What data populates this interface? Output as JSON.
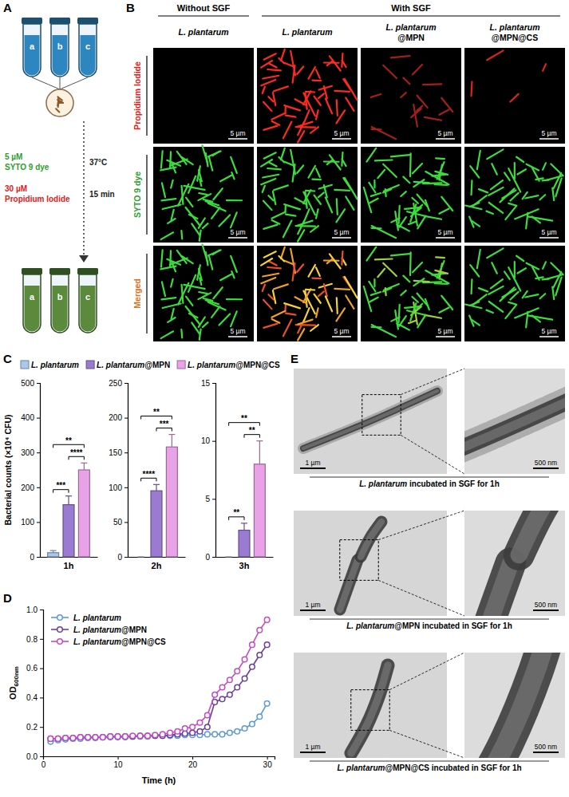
{
  "panel_labels": [
    "A",
    "B",
    "C",
    "D",
    "E"
  ],
  "panel_a": {
    "tubes": [
      "a",
      "b",
      "c"
    ],
    "stain_1": [
      "5 µM",
      "SYTO 9 dye"
    ],
    "stain_2": [
      "30 µM",
      "Propidium Iodide"
    ],
    "conditions": [
      "37°C",
      "15 min"
    ]
  },
  "panel_b": {
    "header_left": "Without SGF",
    "header_right": "With SGF",
    "columns": [
      "L. plantarum",
      "L. plantarum",
      "L. plantarum@MPN",
      "L. plantarum@MPN@CS"
    ],
    "rows": [
      "Propidium Iodide",
      "SYTO 9 dye",
      "Merged"
    ],
    "scale_bar": "5 µm"
  },
  "chart_data": [
    {
      "type": "bar",
      "categories": [
        "1h"
      ],
      "y_label": "Bacterial counts (×10⁴ CFU)",
      "ylim": [
        0,
        500
      ],
      "yticks": [
        0,
        100,
        200,
        300,
        400,
        500
      ],
      "legend": "top",
      "series": [
        {
          "name": "L. plantarum",
          "color": "#a9c8ec",
          "values": [
            12
          ],
          "errors": [
            6
          ]
        },
        {
          "name": "L. plantarum@MPN",
          "color": "#9a7bd1",
          "values": [
            150
          ],
          "errors": [
            25
          ]
        },
        {
          "name": "L. plantarum@MPN@CS",
          "color": "#e9a1e8",
          "values": [
            250
          ],
          "errors": [
            20
          ]
        }
      ],
      "annotations": [
        {
          "text": "***",
          "from": 0,
          "to": 1
        },
        {
          "text": "****",
          "from": 1,
          "to": 2
        },
        {
          "text": "**",
          "from": 0,
          "to": 2
        }
      ]
    },
    {
      "type": "bar",
      "categories": [
        "2h"
      ],
      "ylim": [
        0,
        250
      ],
      "yticks": [
        0,
        50,
        100,
        150,
        200,
        250
      ],
      "series": [
        {
          "color": "#a9c8ec",
          "values": [
            0
          ],
          "errors": [
            0
          ]
        },
        {
          "color": "#9a7bd1",
          "values": [
            95
          ],
          "errors": [
            9
          ]
        },
        {
          "color": "#e9a1e8",
          "values": [
            158
          ],
          "errors": [
            18
          ]
        }
      ],
      "annotations": [
        {
          "text": "****",
          "from": 0,
          "to": 1
        },
        {
          "text": "***",
          "from": 1,
          "to": 2
        },
        {
          "text": "**",
          "from": 0,
          "to": 2
        }
      ]
    },
    {
      "type": "bar",
      "categories": [
        "3h"
      ],
      "ylim": [
        0,
        15
      ],
      "yticks": [
        0,
        5,
        10,
        15
      ],
      "series": [
        {
          "color": "#a9c8ec",
          "values": [
            0
          ],
          "errors": [
            0
          ]
        },
        {
          "color": "#9a7bd1",
          "values": [
            2.3
          ],
          "errors": [
            0.6
          ]
        },
        {
          "color": "#e9a1e8",
          "values": [
            8
          ],
          "errors": [
            2
          ]
        }
      ],
      "annotations": [
        {
          "text": "**",
          "from": 0,
          "to": 1
        },
        {
          "text": "**",
          "from": 1,
          "to": 2
        },
        {
          "text": "**",
          "from": 0,
          "to": 2
        }
      ]
    },
    {
      "type": "line",
      "x_label": "Time (h)",
      "y_label": "OD600nm",
      "xlim": [
        0,
        31
      ],
      "xticks": [
        0,
        10,
        20,
        30
      ],
      "ylim": [
        0,
        1
      ],
      "yticks": [
        {
          "value": 0,
          "label": "0.0"
        },
        0.2,
        0.4,
        0.6,
        0.8,
        {
          "value": 1,
          "label": "1.0"
        }
      ],
      "legend": "top-left",
      "marker": "open-circle",
      "line_style": "solid",
      "x": [
        1,
        2,
        3,
        4,
        5,
        6,
        7,
        8,
        9,
        10,
        11,
        12,
        13,
        14,
        15,
        16,
        17,
        18,
        19,
        20,
        21,
        22,
        23,
        24,
        25,
        26,
        27,
        28,
        29,
        30
      ],
      "series": [
        {
          "name": "L. plantarum",
          "color": "#5b9bd5",
          "values": [
            0.1,
            0.11,
            0.115,
            0.12,
            0.12,
            0.125,
            0.125,
            0.13,
            0.13,
            0.13,
            0.13,
            0.135,
            0.135,
            0.135,
            0.14,
            0.14,
            0.14,
            0.14,
            0.145,
            0.145,
            0.145,
            0.15,
            0.15,
            0.15,
            0.16,
            0.17,
            0.19,
            0.22,
            0.27,
            0.36
          ]
        },
        {
          "name": "L. plantarum@MPN",
          "color": "#6a3fa0",
          "values": [
            0.12,
            0.12,
            0.125,
            0.125,
            0.13,
            0.13,
            0.13,
            0.13,
            0.135,
            0.135,
            0.135,
            0.135,
            0.14,
            0.14,
            0.14,
            0.14,
            0.145,
            0.15,
            0.155,
            0.16,
            0.17,
            0.2,
            0.37,
            0.39,
            0.42,
            0.47,
            0.53,
            0.61,
            0.69,
            0.76
          ]
        },
        {
          "name": "L. plantarum@MPN@CS",
          "color": "#c44bc4",
          "values": [
            0.12,
            0.12,
            0.125,
            0.125,
            0.13,
            0.13,
            0.13,
            0.13,
            0.135,
            0.135,
            0.135,
            0.14,
            0.14,
            0.14,
            0.145,
            0.15,
            0.16,
            0.17,
            0.19,
            0.2,
            0.23,
            0.28,
            0.42,
            0.47,
            0.52,
            0.58,
            0.66,
            0.76,
            0.86,
            0.93
          ]
        }
      ]
    }
  ],
  "panel_e": {
    "images": [
      {
        "caption": "L. plantarum incubated in SGF for 1h",
        "scale_bars": [
          "1 µm",
          "500 nm"
        ]
      },
      {
        "caption": "L. plantarum@MPN incubated in SGF for 1h",
        "scale_bars": [
          "1 µm",
          "500 nm"
        ]
      },
      {
        "caption": "L. plantarum@MPN@CS incubated in SGF for 1h",
        "scale_bars": [
          "1 µm",
          "500 nm"
        ]
      }
    ]
  }
}
